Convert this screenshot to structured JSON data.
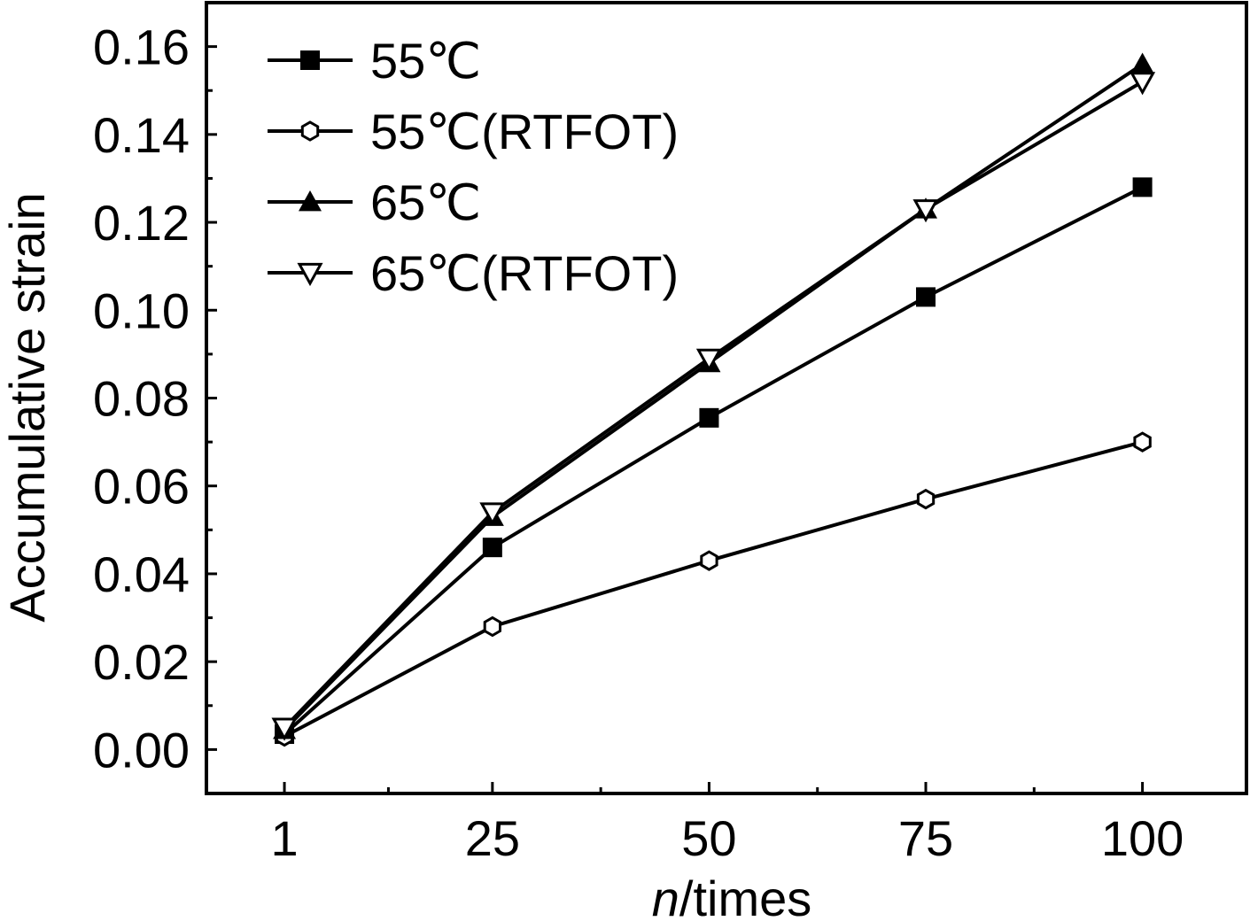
{
  "chart_data": {
    "type": "line",
    "title": "",
    "xlabel_italic": "n",
    "xlabel_rest": "/times",
    "ylabel": "Accumulative strain",
    "x": [
      1,
      25,
      50,
      75,
      100
    ],
    "x_tick_labels": [
      "1",
      "25",
      "50",
      "75",
      "100"
    ],
    "xlim": [
      -8,
      112
    ],
    "ylim": [
      -0.01,
      0.17
    ],
    "y_ticks": [
      0.0,
      0.02,
      0.04,
      0.06,
      0.08,
      0.1,
      0.12,
      0.14,
      0.16
    ],
    "y_tick_labels": [
      "0.00",
      "0.02",
      "0.04",
      "0.06",
      "0.08",
      "0.10",
      "0.12",
      "0.14",
      "0.16"
    ],
    "grid": false,
    "legend_position": "top-left",
    "line_color": "#000000",
    "series": [
      {
        "name": "55℃",
        "marker": "square-filled",
        "values": [
          0.0035,
          0.046,
          0.0755,
          0.103,
          0.128
        ]
      },
      {
        "name": "55℃(RTFOT)",
        "marker": "hexagon-open",
        "values": [
          0.003,
          0.028,
          0.043,
          0.057,
          0.07
        ]
      },
      {
        "name": "65℃",
        "marker": "triangle-up-filled",
        "values": [
          0.0045,
          0.053,
          0.088,
          0.123,
          0.156
        ]
      },
      {
        "name": "65℃(RTFOT)",
        "marker": "triangle-down-open",
        "values": [
          0.005,
          0.054,
          0.089,
          0.123,
          0.152
        ]
      }
    ]
  }
}
